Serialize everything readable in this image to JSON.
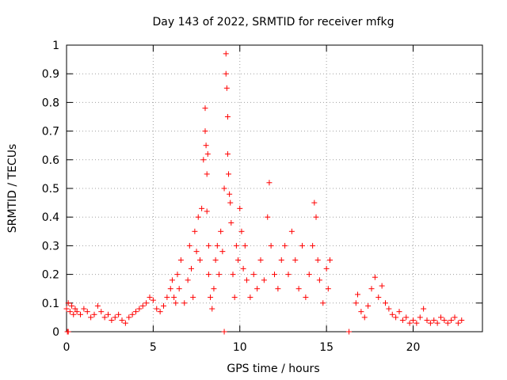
{
  "colors": {
    "series": "#ff0000",
    "axis": "#000000",
    "grid": "#a0a0a0",
    "background": "#ffffff"
  },
  "chart_data": {
    "type": "scatter",
    "title": "Day 143 of 2022, SRMTID for receiver mfkg",
    "xlabel": "GPS time / hours",
    "ylabel": "SRMTID / TECUs",
    "xlim": [
      0,
      24
    ],
    "ylim": [
      0,
      1
    ],
    "grid": true,
    "legend": "none",
    "x_ticks": [
      0,
      5,
      10,
      15,
      20
    ],
    "x_tick_labels": [
      "0",
      "5",
      "10",
      "15",
      "20"
    ],
    "y_ticks": [
      0,
      0.1,
      0.2,
      0.3,
      0.4,
      0.5,
      0.6,
      0.7,
      0.8,
      0.9,
      1
    ],
    "y_tick_labels": [
      "0",
      "0.1",
      "0.2",
      "0.3",
      "0.4",
      "0.5",
      "0.6",
      "0.7",
      "0.8",
      "0.9",
      "1"
    ],
    "series": [
      {
        "name": "SRMTID",
        "marker": "plus",
        "color": "#ff0000",
        "x": [
          0.0,
          0.1,
          0.2,
          0.3,
          0.4,
          0.5,
          0.6,
          0.8,
          1.0,
          1.2,
          1.4,
          1.6,
          1.8,
          2.0,
          2.2,
          2.4,
          2.6,
          2.8,
          3.0,
          3.2,
          3.4,
          3.6,
          3.8,
          4.0,
          4.2,
          4.4,
          4.6,
          4.8,
          5.0,
          5.2,
          5.4,
          5.6,
          5.8,
          6.0,
          6.1,
          6.2,
          6.3,
          6.4,
          6.5,
          6.6,
          6.8,
          7.0,
          7.1,
          7.2,
          7.3,
          7.4,
          7.5,
          7.6,
          7.7,
          7.8,
          7.9,
          8.0,
          8.0,
          8.05,
          8.1,
          8.1,
          8.15,
          8.2,
          8.2,
          8.3,
          8.4,
          8.5,
          8.6,
          8.7,
          8.8,
          8.9,
          9.0,
          9.1,
          9.2,
          9.2,
          9.25,
          9.3,
          9.3,
          9.35,
          9.4,
          9.45,
          9.5,
          9.6,
          9.7,
          9.8,
          9.9,
          10.0,
          10.1,
          10.2,
          10.3,
          10.4,
          10.6,
          10.8,
          11.0,
          11.2,
          11.4,
          11.6,
          11.7,
          11.8,
          12.0,
          12.2,
          12.4,
          12.6,
          12.8,
          13.0,
          13.2,
          13.4,
          13.6,
          13.8,
          14.0,
          14.2,
          14.3,
          14.4,
          14.5,
          14.6,
          14.8,
          15.0,
          15.1,
          15.2,
          16.7,
          16.8,
          17.0,
          17.2,
          17.4,
          17.6,
          17.8,
          18.0,
          18.2,
          18.4,
          18.6,
          18.8,
          19.0,
          19.2,
          19.4,
          19.6,
          19.8,
          20.0,
          20.2,
          20.4,
          20.6,
          20.8,
          21.0,
          21.2,
          21.4,
          21.6,
          21.8,
          22.0,
          22.2,
          22.4,
          22.6,
          22.8,
          0.05,
          0.1,
          9.1,
          16.3
        ],
        "y": [
          0.08,
          0.1,
          0.07,
          0.09,
          0.06,
          0.08,
          0.07,
          0.06,
          0.08,
          0.07,
          0.05,
          0.06,
          0.09,
          0.07,
          0.05,
          0.06,
          0.04,
          0.05,
          0.06,
          0.04,
          0.03,
          0.05,
          0.06,
          0.07,
          0.08,
          0.09,
          0.1,
          0.12,
          0.11,
          0.08,
          0.07,
          0.09,
          0.12,
          0.15,
          0.18,
          0.12,
          0.1,
          0.2,
          0.15,
          0.25,
          0.1,
          0.18,
          0.3,
          0.22,
          0.12,
          0.35,
          0.28,
          0.4,
          0.25,
          0.43,
          0.6,
          0.7,
          0.78,
          0.65,
          0.55,
          0.42,
          0.62,
          0.3,
          0.2,
          0.12,
          0.08,
          0.15,
          0.25,
          0.3,
          0.2,
          0.35,
          0.28,
          0.5,
          0.97,
          0.9,
          0.85,
          0.75,
          0.62,
          0.55,
          0.48,
          0.45,
          0.38,
          0.2,
          0.12,
          0.3,
          0.25,
          0.43,
          0.35,
          0.22,
          0.3,
          0.18,
          0.12,
          0.2,
          0.15,
          0.25,
          0.18,
          0.4,
          0.52,
          0.3,
          0.2,
          0.15,
          0.25,
          0.3,
          0.2,
          0.35,
          0.25,
          0.15,
          0.3,
          0.12,
          0.2,
          0.3,
          0.45,
          0.4,
          0.25,
          0.18,
          0.1,
          0.22,
          0.15,
          0.25,
          0.1,
          0.13,
          0.07,
          0.05,
          0.09,
          0.15,
          0.19,
          0.12,
          0.16,
          0.1,
          0.08,
          0.06,
          0.05,
          0.07,
          0.04,
          0.05,
          0.03,
          0.04,
          0.03,
          0.05,
          0.08,
          0.04,
          0.03,
          0.04,
          0.03,
          0.05,
          0.04,
          0.03,
          0.04,
          0.05,
          0.03,
          0.04,
          0.0,
          0.0,
          0.0,
          0.0
        ]
      }
    ]
  }
}
